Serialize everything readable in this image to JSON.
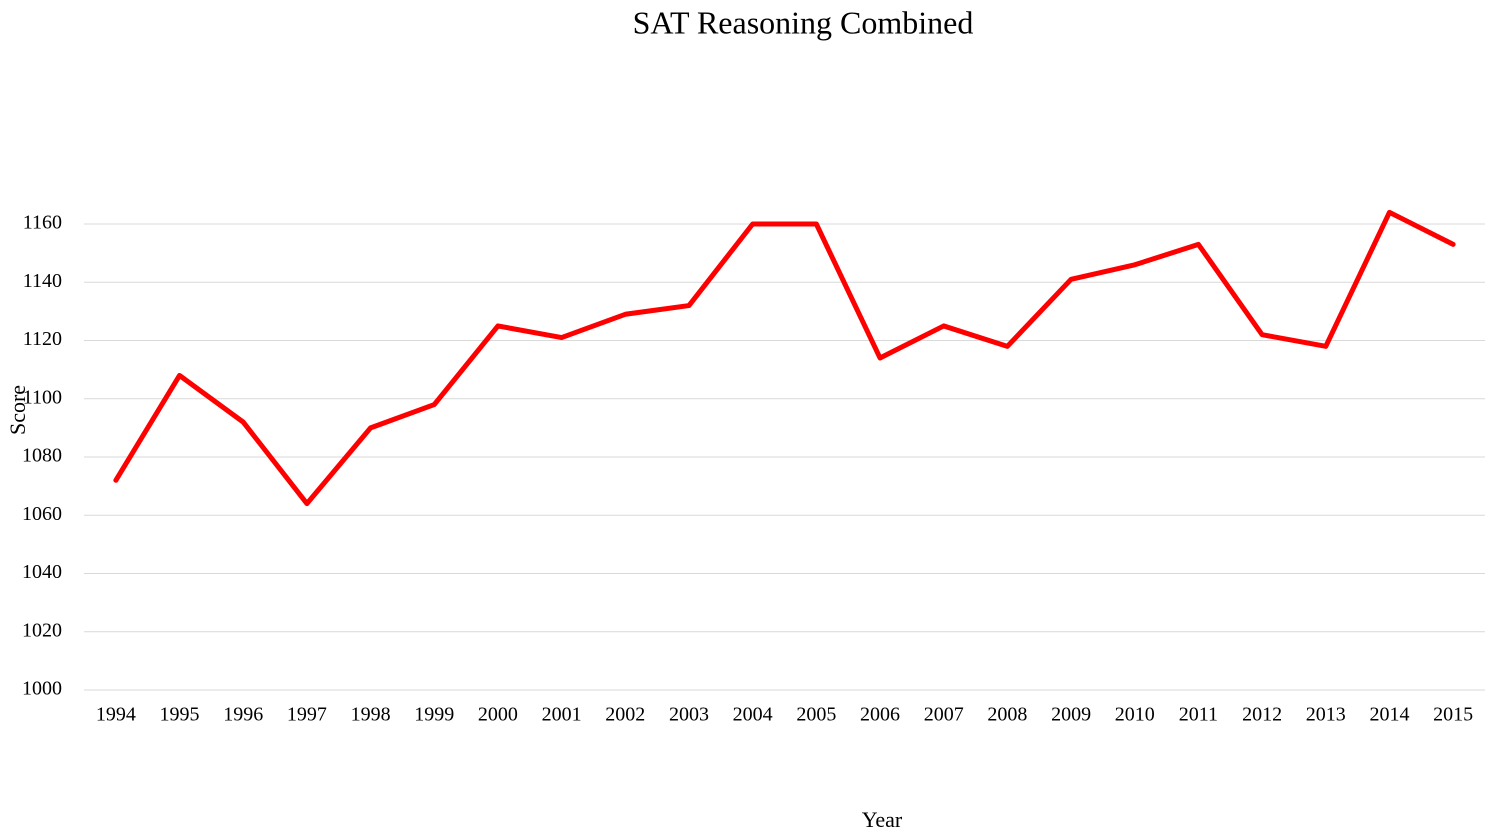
{
  "chart_data": {
    "type": "line",
    "title": "SAT Reasoning  Combined",
    "x_label": "Year",
    "y_label": "Score",
    "categories": [
      "1994",
      "1995",
      "1996",
      "1997",
      "1998",
      "1999",
      "2000",
      "2001",
      "2002",
      "2003",
      "2004",
      "2005",
      "2006",
      "2007",
      "2008",
      "2009",
      "2010",
      "2011",
      "2012",
      "2013",
      "2014",
      "2015"
    ],
    "series": [
      {
        "name": "Score",
        "color": "#ff0000",
        "values": [
          1072,
          1108,
          1092,
          1064,
          1090,
          1098,
          1125,
          1121,
          1129,
          1132,
          1160,
          1160,
          1114,
          1125,
          1118,
          1141,
          1146,
          1153,
          1122,
          1118,
          1164,
          1153
        ]
      }
    ],
    "ylim": [
      1000,
      1160
    ],
    "yticks": [
      1000,
      1020,
      1040,
      1060,
      1080,
      1100,
      1120,
      1140,
      1160
    ],
    "grid": true
  }
}
